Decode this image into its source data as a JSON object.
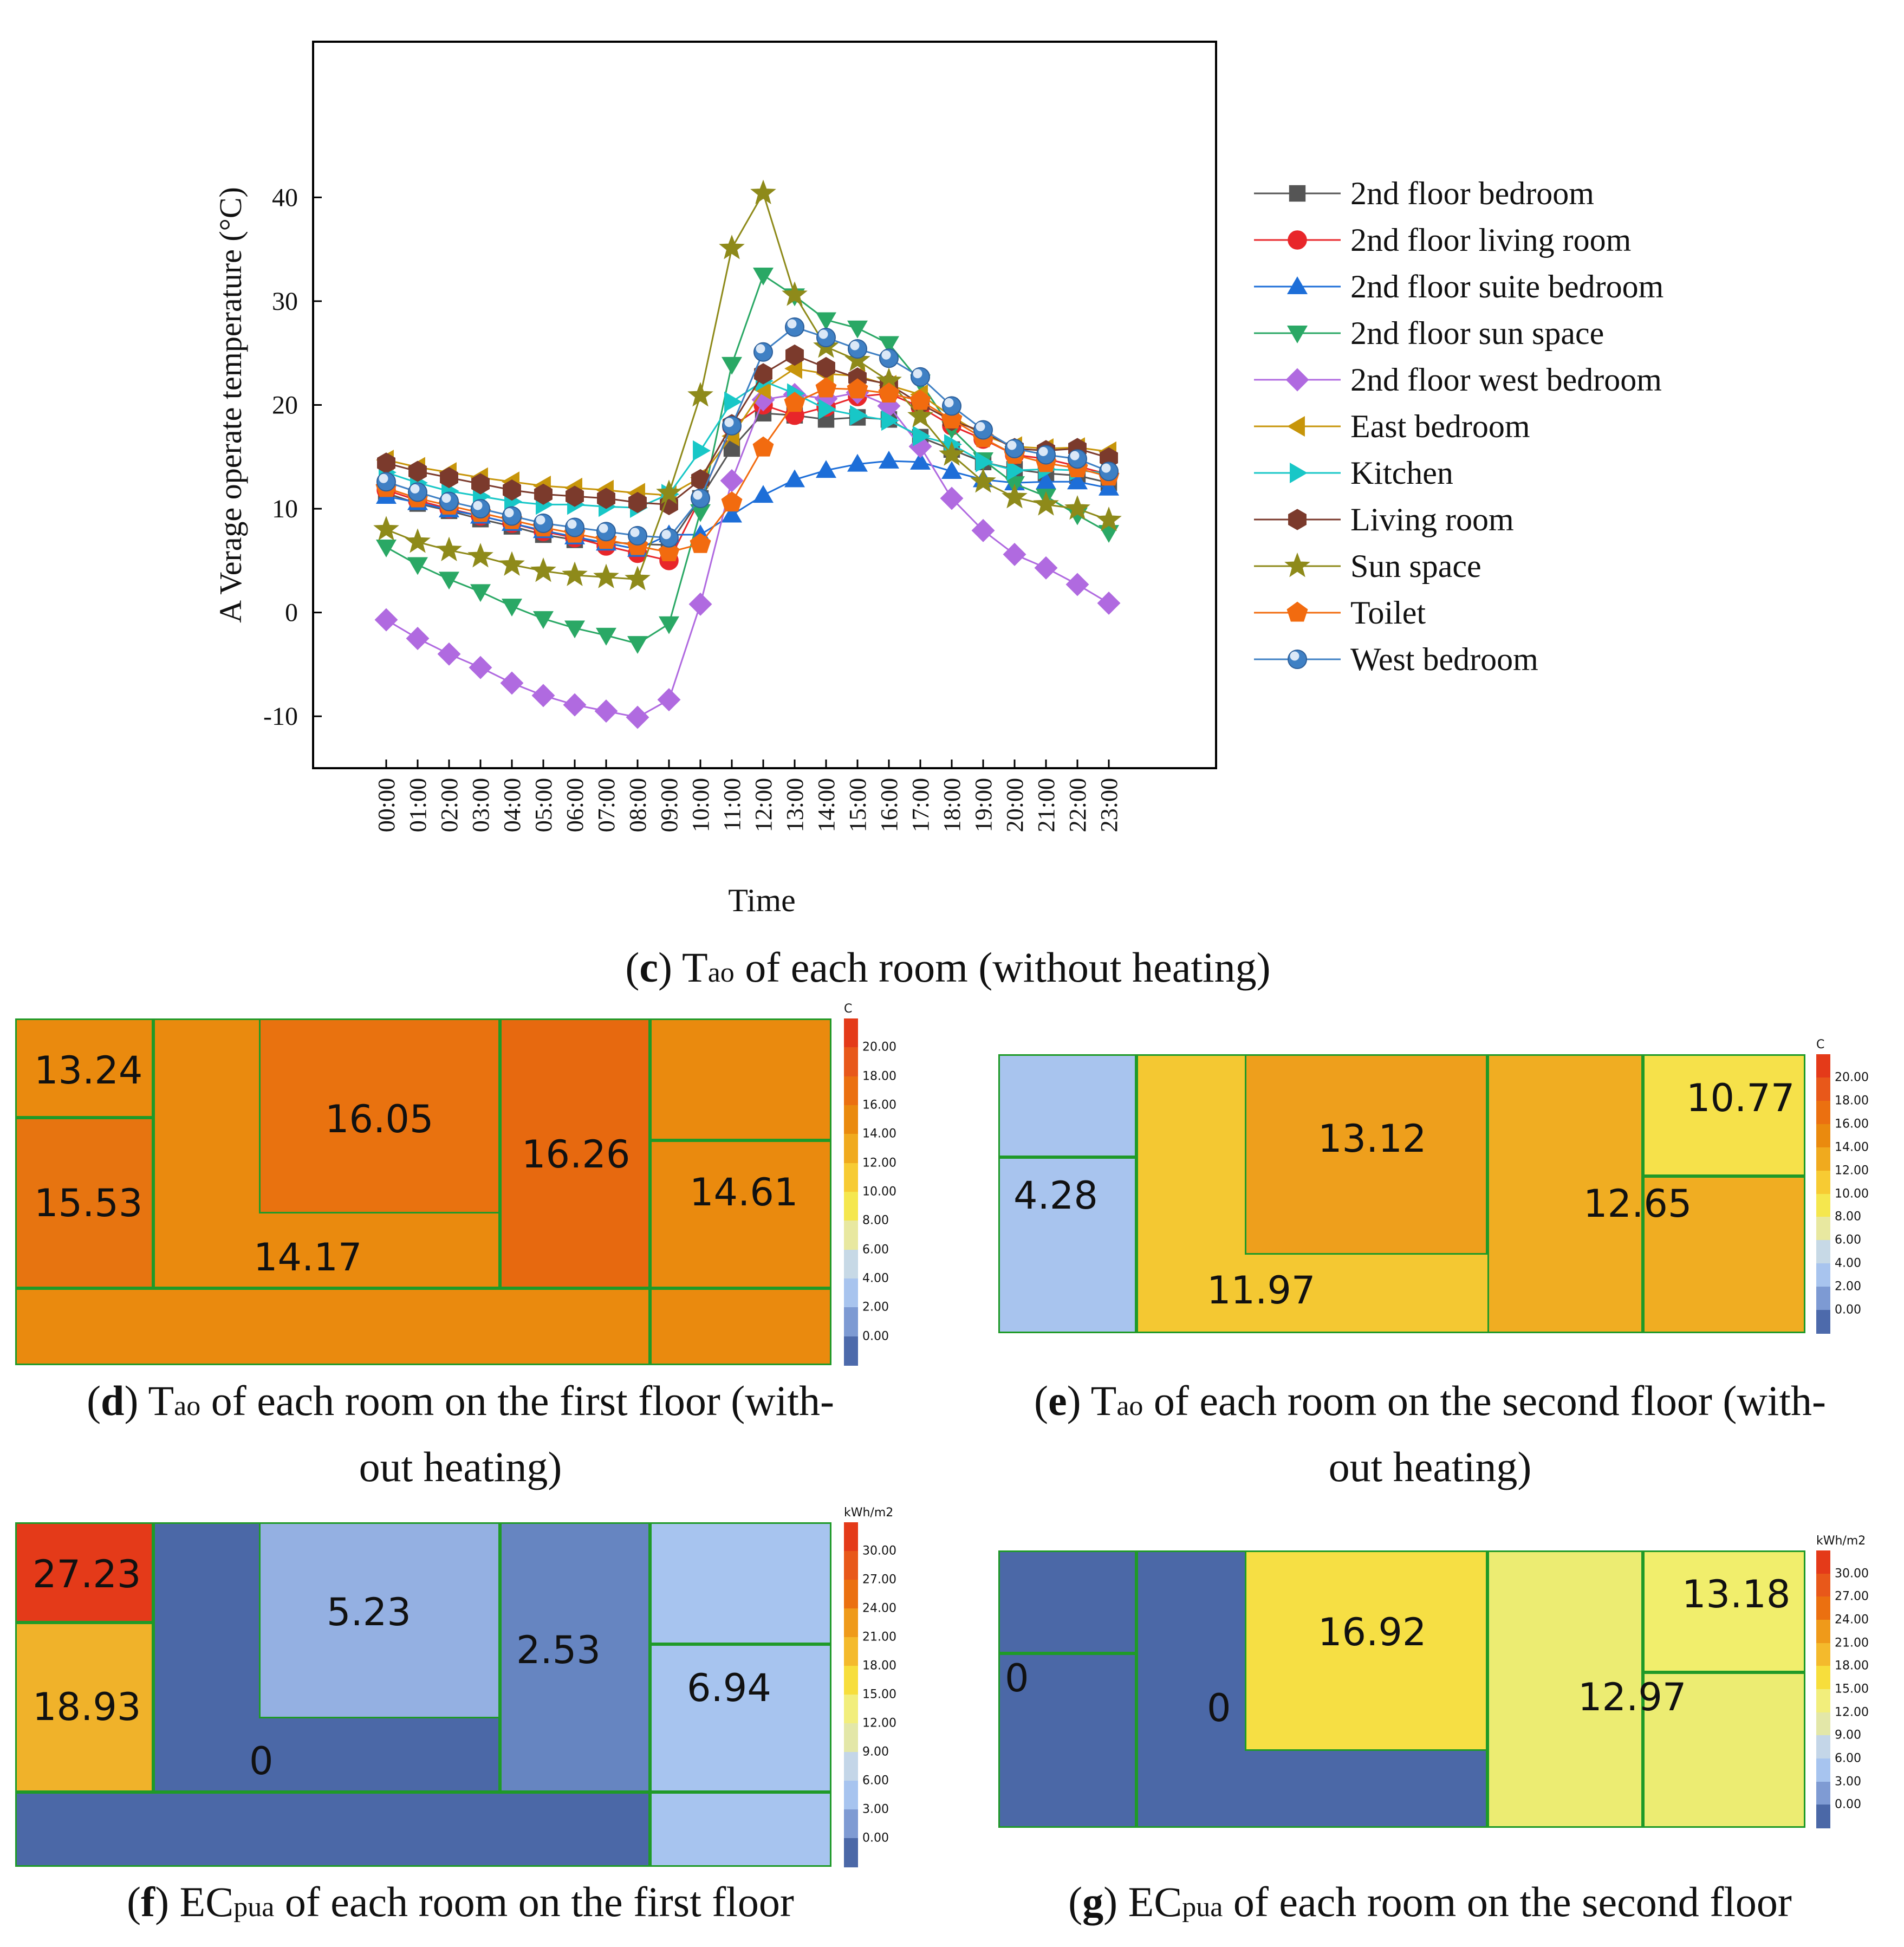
{
  "chart_data": [
    {
      "type": "line",
      "ylabel": "A Verage operate temperature (°C)",
      "xlabel": "Time",
      "ylim": [
        -15,
        55
      ],
      "yticks": [
        -10,
        0,
        10,
        20,
        30,
        40
      ],
      "x": [
        "00:00",
        "01:00",
        "02:00",
        "03:00",
        "04:00",
        "05:00",
        "06:00",
        "07:00",
        "08:00",
        "09:00",
        "10:00",
        "11:00",
        "12:00",
        "13:00",
        "14:00",
        "15:00",
        "16:00",
        "17:00",
        "18:00",
        "19:00",
        "20:00",
        "21:00",
        "22:00",
        "23:00"
      ],
      "caption": {
        "letter": "c",
        "base": "T",
        "sub": "ao",
        "rest": " of each room (without heating)"
      },
      "series": [
        {
          "name": "2nd floor bedroom",
          "color": "#555555",
          "marker": "square",
          "values": [
            11.5,
            10.5,
            9.8,
            9.0,
            8.3,
            7.5,
            7.0,
            6.8,
            6.6,
            6.5,
            11.0,
            15.8,
            19.2,
            19.0,
            18.6,
            18.8,
            18.6,
            16.9,
            15.7,
            14.5,
            13.8,
            13.4,
            13.2,
            12.5
          ]
        },
        {
          "name": "2nd floor living room",
          "color": "#e8262a",
          "marker": "circle",
          "values": [
            11.8,
            10.8,
            10.0,
            9.3,
            8.6,
            7.8,
            7.2,
            6.4,
            5.7,
            5.0,
            11.0,
            17.9,
            20.0,
            19.0,
            19.8,
            20.8,
            21.1,
            19.8,
            18.0,
            16.7,
            15.2,
            14.8,
            14.1,
            13.3
          ]
        },
        {
          "name": "2nd floor suite bedroom",
          "color": "#1d6ed8",
          "marker": "triangle-up",
          "values": [
            11.2,
            10.6,
            9.9,
            9.3,
            8.6,
            7.9,
            7.3,
            6.7,
            6.1,
            7.5,
            7.5,
            9.4,
            11.3,
            12.8,
            13.7,
            14.3,
            14.6,
            14.5,
            13.6,
            12.8,
            12.5,
            12.6,
            12.6,
            12.0
          ]
        },
        {
          "name": "2nd floor sun space",
          "color": "#2aa865",
          "marker": "triangle-down",
          "values": [
            6.3,
            4.6,
            3.2,
            2.0,
            0.6,
            -0.6,
            -1.5,
            -2.2,
            -3.0,
            -1.1,
            9.7,
            23.9,
            32.5,
            30.5,
            28.2,
            27.4,
            25.9,
            22.2,
            17.7,
            14.7,
            12.4,
            11.2,
            9.4,
            7.7
          ]
        },
        {
          "name": "2nd floor west bedroom",
          "color": "#b06ae0",
          "marker": "diamond",
          "values": [
            -0.7,
            -2.5,
            -4.0,
            -5.3,
            -6.8,
            -8.0,
            -8.9,
            -9.5,
            -10.1,
            -8.4,
            0.8,
            12.7,
            20.5,
            21.0,
            20.6,
            21.2,
            19.9,
            16.0,
            11.0,
            7.9,
            5.6,
            4.3,
            2.7,
            0.9
          ]
        },
        {
          "name": "East bedroom",
          "color": "#c7950a",
          "marker": "triangle-left",
          "values": [
            14.7,
            14.0,
            13.5,
            13.0,
            12.6,
            12.2,
            12.0,
            11.8,
            11.5,
            11.3,
            13.0,
            17.0,
            21.5,
            23.5,
            23.0,
            22.8,
            21.9,
            21.0,
            18.9,
            17.1,
            16.0,
            15.8,
            15.9,
            15.5
          ]
        },
        {
          "name": "Kitchen",
          "color": "#18c7c7",
          "marker": "triangle-right",
          "values": [
            13.5,
            12.5,
            11.7,
            11.2,
            10.7,
            10.4,
            10.4,
            10.2,
            10.1,
            11.4,
            15.6,
            20.3,
            22.3,
            21.1,
            19.6,
            19.0,
            18.5,
            17.0,
            16.2,
            14.5,
            13.7,
            13.8,
            13.7,
            13.4
          ]
        },
        {
          "name": "Living room",
          "color": "#7b3a2c",
          "marker": "hexagon",
          "values": [
            14.4,
            13.6,
            13.0,
            12.4,
            11.8,
            11.4,
            11.2,
            11.0,
            10.6,
            10.4,
            12.8,
            18.1,
            23.0,
            24.8,
            23.6,
            22.6,
            22.0,
            20.1,
            18.5,
            17.4,
            15.8,
            15.6,
            15.8,
            14.9
          ]
        },
        {
          "name": "Sun space",
          "color": "#8e8a1a",
          "marker": "star",
          "values": [
            8.0,
            6.8,
            6.0,
            5.4,
            4.6,
            4.0,
            3.6,
            3.4,
            3.2,
            11.5,
            20.9,
            35.1,
            40.4,
            30.6,
            25.6,
            24.3,
            22.3,
            18.9,
            15.2,
            12.6,
            11.1,
            10.4,
            10.0,
            8.9
          ]
        },
        {
          "name": "Toilet",
          "color": "#f26b0f",
          "marker": "pentagon",
          "values": [
            12.0,
            11.0,
            10.3,
            9.6,
            8.9,
            8.2,
            7.6,
            7.0,
            6.4,
            5.8,
            6.6,
            10.6,
            15.9,
            20.2,
            21.6,
            21.5,
            21.1,
            20.4,
            18.6,
            16.8,
            15.2,
            14.4,
            13.9,
            13.1
          ]
        },
        {
          "name": "West bedroom",
          "color": "#3f80c4",
          "marker": "sphere",
          "values": [
            12.6,
            11.6,
            10.7,
            10.0,
            9.3,
            8.6,
            8.2,
            7.8,
            7.4,
            7.2,
            11.0,
            18.0,
            25.1,
            27.5,
            26.5,
            25.4,
            24.5,
            22.7,
            19.9,
            17.6,
            15.8,
            15.2,
            14.8,
            13.6
          ]
        }
      ]
    },
    {
      "type": "heatmap",
      "panel": "d",
      "caption": {
        "letter": "d",
        "base": "T",
        "sub": "ao",
        "rest": " of each room on the first floor (with-",
        "line2": "out heating)"
      },
      "colorbar": {
        "unit": "C",
        "ticks": [
          "20.00",
          "18.00",
          "16.00",
          "14.00",
          "12.00",
          "10.00",
          "8.00",
          "6.00",
          "4.00",
          "2.00",
          "0.00"
        ]
      },
      "labels": [
        "13.24",
        "15.53",
        "16.05",
        "14.17",
        "16.26",
        "14.61"
      ]
    },
    {
      "type": "heatmap",
      "panel": "e",
      "caption": {
        "letter": "e",
        "base": "T",
        "sub": "ao",
        "rest": " of each room on the second floor (with-",
        "line2": "out heating)"
      },
      "colorbar": {
        "unit": "C",
        "ticks": [
          "20.00",
          "18.00",
          "16.00",
          "14.00",
          "12.00",
          "10.00",
          "8.00",
          "6.00",
          "4.00",
          "2.00",
          "0.00"
        ]
      },
      "labels": [
        "4.28",
        "13.12",
        "11.97",
        "10.77",
        "12.65"
      ]
    },
    {
      "type": "heatmap",
      "panel": "f",
      "caption": {
        "letter": "f",
        "base": "EC",
        "sub": "pua",
        "rest": " of each room on the first floor"
      },
      "colorbar": {
        "unit": "kWh/m2",
        "ticks": [
          "30.00",
          "27.00",
          "24.00",
          "21.00",
          "18.00",
          "15.00",
          "12.00",
          "9.00",
          "6.00",
          "3.00",
          "0.00"
        ]
      },
      "labels": [
        "27.23",
        "18.93",
        "5.23",
        "0",
        "2.53",
        "6.94"
      ]
    },
    {
      "type": "heatmap",
      "panel": "g",
      "caption": {
        "letter": "g",
        "base": "EC",
        "sub": "pua",
        "rest": " of each room on the second floor"
      },
      "colorbar": {
        "unit": "kWh/m2",
        "ticks": [
          "30.00",
          "27.00",
          "24.00",
          "21.00",
          "18.00",
          "15.00",
          "12.00",
          "9.00",
          "6.00",
          "3.00",
          "0.00"
        ]
      },
      "labels": [
        "0",
        "0",
        "16.92",
        "13.18",
        "12.97"
      ]
    }
  ],
  "heatmap_colors": {
    "temp_scale": [
      "#e43a19",
      "#e8581a",
      "#eb7010",
      "#ea8a0e",
      "#f0aa1e",
      "#f7cb33",
      "#f5e74e",
      "#e8e8a0",
      "#c7d9e6",
      "#a8c4ee",
      "#7d9ad3",
      "#4d6aab"
    ],
    "energy_scale": [
      "#e43a19",
      "#e8581a",
      "#eb7010",
      "#ef9a1a",
      "#f4ba2c",
      "#f7de3c",
      "#f2ee7c",
      "#e3e7a8",
      "#c4d6e8",
      "#a7c4ef",
      "#7f9bd3",
      "#4b68a7"
    ],
    "border": "#1f9a28"
  }
}
